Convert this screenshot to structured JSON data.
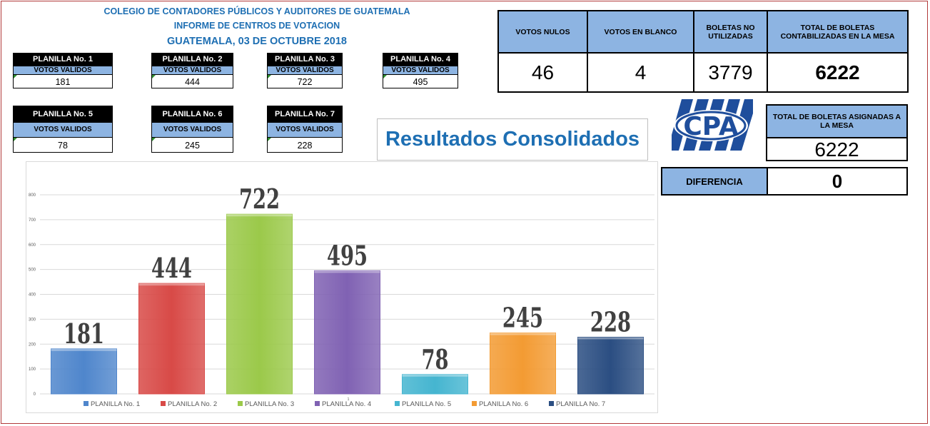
{
  "header": {
    "line1": "COLEGIO DE CONTADORES PÚBLICOS Y AUDITORES DE GUATEMALA",
    "line2": "INFORME DE CENTROS DE VOTACION",
    "line3": "GUATEMALA, 03 DE OCTUBRE 2018"
  },
  "planillas": [
    {
      "name": "PLANILLA No. 1",
      "label": "VOTOS VALIDOS",
      "value": "181"
    },
    {
      "name": "PLANILLA No. 2",
      "label": "VOTOS VALIDOS",
      "value": "444"
    },
    {
      "name": "PLANILLA No. 3",
      "label": "VOTOS VALIDOS",
      "value": "722"
    },
    {
      "name": "PLANILLA No. 4",
      "label": "VOTOS VALIDOS",
      "value": "495"
    },
    {
      "name": "PLANILLA No. 5",
      "label": "VOTOS VALIDOS",
      "value": "78"
    },
    {
      "name": "PLANILLA No. 6",
      "label": "VOTOS VALIDOS",
      "value": "245"
    },
    {
      "name": "PLANILLA No. 7",
      "label": "VOTOS VALIDOS",
      "value": "228"
    }
  ],
  "summary": {
    "nulos_label": "VOTOS NULOS",
    "nulos": "46",
    "blanco_label": "VOTOS EN BLANCO",
    "blanco": "4",
    "no_util_label": "BOLETAS NO UTILIZADAS",
    "no_util": "3779",
    "total_label": "TOTAL DE BOLETAS CONTABILIZADAS EN LA MESA",
    "total": "6222",
    "asignadas_label": "TOTAL DE BOLETAS ASIGNADAS A LA MESA",
    "asignadas": "6222",
    "diferencia_label": "DIFERENCIA",
    "diferencia": "0"
  },
  "logo_text": "CPA",
  "results_title": "Resultados Consolidados",
  "colors": {
    "header_blue": "#1e6fb3",
    "cell_blue": "#8db4e2"
  },
  "chart_data": {
    "type": "bar",
    "categories": [
      "PLANILLA No. 1",
      "PLANILLA No. 2",
      "PLANILLA No. 3",
      "PLANILLA No. 4",
      "PLANILLA No. 5",
      "PLANILLA No. 6",
      "PLANILLA No. 7"
    ],
    "values": [
      181,
      444,
      722,
      495,
      78,
      245,
      228
    ],
    "colors": [
      "#4f86cc",
      "#d84a47",
      "#9bc94a",
      "#8062b3",
      "#45b5d0",
      "#f39b33",
      "#2b4e82"
    ],
    "ylim": [
      0,
      800
    ],
    "yticks": [
      "0",
      "100",
      "200",
      "300",
      "400",
      "500",
      "600",
      "700",
      "800"
    ],
    "x_axis_label": "1",
    "grid": true,
    "legend": "bottom"
  }
}
